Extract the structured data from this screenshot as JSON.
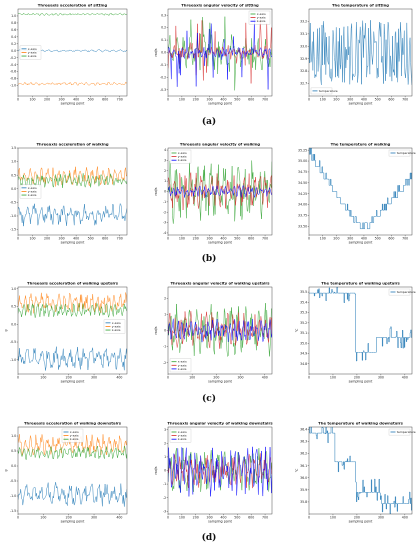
{
  "figure": {
    "row_labels": [
      "(a)",
      "(b)",
      "(c)",
      "(d)"
    ],
    "colors": {
      "x": "#1f77b4",
      "y": "#ff7f0e",
      "z": "#2ca02c",
      "gyro_x": "#2ca02c",
      "gyro_y": "#d62728",
      "gyro_z": "#0000ff",
      "temp": "#1f77b4"
    }
  },
  "chart_data": [
    {
      "type": "line",
      "activity": "sitting",
      "row": 0,
      "col": 0,
      "title": "Threeaxis acceleration of sitting",
      "xlabel": "sampling point",
      "ylabel": "",
      "xlim": [
        0,
        750
      ],
      "ylim": [
        -1.3,
        1.2
      ],
      "xticks": [
        "0",
        "100",
        "200",
        "300",
        "400",
        "500",
        "600",
        "700"
      ],
      "yticks": [
        "1.0",
        "0.8",
        "0.6",
        "0.4",
        "0.2",
        "0.0",
        "-0.2",
        "-0.4",
        "-0.6",
        "-0.8",
        "-1.0"
      ],
      "legend": "left",
      "series": [
        {
          "name": "x-axis",
          "base": 0.0,
          "amp": 0.03
        },
        {
          "name": "y-axis",
          "base": -0.95,
          "amp": 0.04
        },
        {
          "name": "z-axis",
          "base": 1.05,
          "amp": 0.03
        }
      ]
    },
    {
      "type": "line",
      "activity": "sitting",
      "row": 0,
      "col": 1,
      "title": "Threeaxis angular velocity of sitting",
      "xlabel": "sampling point",
      "ylabel": "rad/s",
      "xlim": [
        0,
        750
      ],
      "ylim": [
        -0.35,
        0.35
      ],
      "xticks": [
        "0",
        "100",
        "200",
        "300",
        "400",
        "500",
        "600",
        "700"
      ],
      "yticks": [
        "0.3",
        "0.2",
        "0.1",
        "0.0",
        "-0.1",
        "-0.2",
        "-0.3"
      ],
      "legend": "top-right",
      "series": [
        {
          "name": "x-axis",
          "base": 0.0,
          "amp": 0.12
        },
        {
          "name": "y-axis",
          "base": 0.0,
          "amp": 0.05
        },
        {
          "name": "z-axis",
          "base": 0.0,
          "amp": 0.04
        }
      ]
    },
    {
      "type": "line",
      "activity": "sitting",
      "row": 0,
      "col": 2,
      "title": "The temperature of sitting",
      "xlabel": "sampling point",
      "ylabel": "",
      "xlim": [
        0,
        750
      ],
      "ylim": [
        32.6,
        33.3
      ],
      "xticks": [
        "0",
        "100",
        "200",
        "300",
        "400",
        "500",
        "600",
        "700"
      ],
      "yticks": [
        "33.2",
        "33.1",
        "33.0",
        "32.9",
        "32.8",
        "32.7"
      ],
      "legend": "bottom-left",
      "series": [
        {
          "name": "temperature",
          "base": 32.95,
          "amp": 0.18
        }
      ]
    },
    {
      "type": "line",
      "activity": "walking",
      "row": 1,
      "col": 0,
      "title": "Threeaxis acceleration of walking",
      "xlabel": "sampling point",
      "ylabel": "",
      "xlim": [
        0,
        750
      ],
      "ylim": [
        -1.7,
        1.5
      ],
      "xticks": [
        "0",
        "100",
        "200",
        "300",
        "400",
        "500",
        "600",
        "700"
      ],
      "yticks": [
        "1.5",
        "1.0",
        "0.5",
        "0.0",
        "-0.5",
        "-1.0",
        "-1.5"
      ],
      "legend": "left",
      "series": [
        {
          "name": "x-axis",
          "base": -0.95,
          "amp": 0.35
        },
        {
          "name": "y-axis",
          "base": 0.45,
          "amp": 0.3
        },
        {
          "name": "z-axis",
          "base": 0.3,
          "amp": 0.22
        }
      ]
    },
    {
      "type": "line",
      "activity": "walking",
      "row": 1,
      "col": 1,
      "title": "Threeaxis angular velocity of walking",
      "xlabel": "sampling point",
      "ylabel": "rad/s",
      "xlim": [
        0,
        750
      ],
      "ylim": [
        -4.2,
        4.2
      ],
      "xticks": [
        "0",
        "100",
        "200",
        "300",
        "400",
        "500",
        "600",
        "700"
      ],
      "yticks": [
        "4",
        "3",
        "2",
        "1",
        "0",
        "-1",
        "-2",
        "-3",
        "-4"
      ],
      "legend": "top-left",
      "series": [
        {
          "name": "x-axis",
          "base": 0.0,
          "amp": 2.5
        },
        {
          "name": "y-axis",
          "base": 0.0,
          "amp": 1.5
        },
        {
          "name": "z-axis",
          "base": 0.0,
          "amp": 0.5
        }
      ]
    },
    {
      "type": "line",
      "activity": "walking",
      "row": 1,
      "col": 2,
      "title": "The temperature of walking",
      "xlabel": "sampling point",
      "ylabel": "",
      "xlim": [
        0,
        750
      ],
      "ylim": [
        33.3,
        35.3
      ],
      "xticks": [
        "0",
        "100",
        "200",
        "300",
        "400",
        "500",
        "600",
        "700"
      ],
      "yticks": [
        "35.25",
        "35.00",
        "34.75",
        "34.50",
        "34.25",
        "34.00",
        "33.75",
        "33.50"
      ],
      "legend": "top-right",
      "series": [
        {
          "name": "temperature",
          "base": 34.4,
          "amp": 0.05
        }
      ]
    },
    {
      "type": "line",
      "activity": "walking upstairs",
      "row": 2,
      "col": 0,
      "title": "Threeaxis acceleration of walking upstairs",
      "xlabel": "sampling point",
      "ylabel": "g",
      "xlim": [
        0,
        430
      ],
      "ylim": [
        -1.4,
        1.05
      ],
      "xticks": [
        "0",
        "100",
        "200",
        "300",
        "400"
      ],
      "yticks": [
        "1.0",
        "0.5",
        "0.0",
        "-0.5",
        "-1.0"
      ],
      "legend": "right",
      "series": [
        {
          "name": "x-axis",
          "base": -0.95,
          "amp": 0.3
        },
        {
          "name": "y-axis",
          "base": 0.6,
          "amp": 0.25
        },
        {
          "name": "z-axis",
          "base": 0.4,
          "amp": 0.18
        }
      ]
    },
    {
      "type": "line",
      "activity": "walking upstairs",
      "row": 2,
      "col": 1,
      "title": "Threeaxis angular velocity of walking upstairs",
      "xlabel": "sampling point",
      "ylabel": "rad/s",
      "xlim": [
        0,
        430
      ],
      "ylim": [
        -2.7,
        2.7
      ],
      "xticks": [
        "0",
        "100",
        "200",
        "300",
        "400"
      ],
      "yticks": [
        "2",
        "1",
        "0",
        "-1",
        "-2"
      ],
      "legend": "bottom-left",
      "series": [
        {
          "name": "x-axis",
          "base": 0.0,
          "amp": 1.4
        },
        {
          "name": "y-axis",
          "base": 0.0,
          "amp": 1.0
        },
        {
          "name": "z-axis",
          "base": 0.0,
          "amp": 0.6
        }
      ]
    },
    {
      "type": "line",
      "activity": "walking upstairs",
      "row": 2,
      "col": 2,
      "title": "The temperature of walking upstairs",
      "xlabel": "sampling point",
      "ylabel": "°C",
      "xlim": [
        0,
        430
      ],
      "ylim": [
        34.7,
        35.55
      ],
      "xticks": [
        "0",
        "100",
        "200",
        "300",
        "400"
      ],
      "yticks": [
        "35.5",
        "35.4",
        "35.3",
        "35.2",
        "35.1",
        "35.0",
        "34.9",
        "34.8"
      ],
      "legend": "top-right",
      "series": [
        {
          "name": "temperature",
          "base": 35.0,
          "amp": 0.05
        }
      ]
    },
    {
      "type": "line",
      "activity": "walking downstairs",
      "row": 3,
      "col": 0,
      "title": "Threeaxis acceleration of walking downstairs",
      "xlabel": "sampling point",
      "ylabel": "g",
      "xlim": [
        0,
        430
      ],
      "ylim": [
        -1.6,
        1.3
      ],
      "xticks": [
        "0",
        "100",
        "200",
        "300",
        "400"
      ],
      "yticks": [
        "1.0",
        "0.5",
        "0.0",
        "-0.5",
        "-1.0",
        "-1.5"
      ],
      "legend": "top-center",
      "series": [
        {
          "name": "x-axis",
          "base": -0.95,
          "amp": 0.35
        },
        {
          "name": "y-axis",
          "base": 0.7,
          "amp": 0.3
        },
        {
          "name": "z-axis",
          "base": 0.45,
          "amp": 0.2
        }
      ]
    },
    {
      "type": "line",
      "activity": "walking downstairs",
      "row": 3,
      "col": 1,
      "title": "Threeaxis angular velocity of walking downstairs",
      "xlabel": "sampling point",
      "ylabel": "rad/s",
      "xlim": [
        0,
        750
      ],
      "ylim": [
        -3.2,
        3.2
      ],
      "xticks": [
        "0",
        "100",
        "200",
        "300",
        "400",
        "500",
        "600",
        "700"
      ],
      "yticks": [
        "3",
        "2",
        "1",
        "0",
        "-1",
        "-2",
        "-3"
      ],
      "legend": "top-left",
      "series": [
        {
          "name": "x-axis",
          "base": 0.0,
          "amp": 1.4
        },
        {
          "name": "y-axis",
          "base": 0.0,
          "amp": 1.1
        },
        {
          "name": "z-axis",
          "base": 0.0,
          "amp": 1.6
        }
      ]
    },
    {
      "type": "line",
      "activity": "walking downstairs",
      "row": 3,
      "col": 2,
      "title": "The temperature of walking downstairs",
      "xlabel": "sampling point",
      "ylabel": "°C",
      "xlim": [
        0,
        430
      ],
      "ylim": [
        35.7,
        36.42
      ],
      "xticks": [
        "0",
        "100",
        "200",
        "300",
        "400"
      ],
      "yticks": [
        "36.4",
        "36.3",
        "36.2",
        "36.1",
        "36.0",
        "35.9",
        "35.8"
      ],
      "legend": "top-right",
      "series": [
        {
          "name": "temperature",
          "base": 36.0,
          "amp": 0.05
        }
      ]
    }
  ]
}
